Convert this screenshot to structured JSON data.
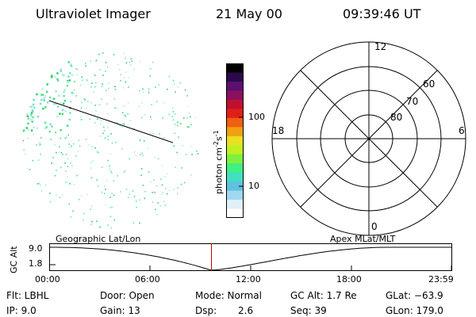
{
  "header": {
    "instrument": "Ultraviolet Imager",
    "date": "21 May 00",
    "time": "09:39:46 UT"
  },
  "colorbar": {
    "label": "photon cm",
    "label_exp1": "-2",
    "label_mid": "s",
    "label_exp2": "-1",
    "ticks": [
      "100",
      "10"
    ],
    "colors": [
      "#000000",
      "#2a0a4a",
      "#5a1070",
      "#8a1060",
      "#c01030",
      "#e02018",
      "#f06010",
      "#f0a010",
      "#e8e020",
      "#c0f020",
      "#80f040",
      "#40f080",
      "#40e0c0",
      "#60c0e0",
      "#a0d8f0",
      "#e0f0f8",
      "#ffffff"
    ]
  },
  "polar": {
    "mlt_labels": [
      "12",
      "18",
      "6",
      "0"
    ],
    "lat_labels": [
      "60",
      "70",
      "80"
    ]
  },
  "alt_plot": {
    "title_left": "Geographic Lat/Lon",
    "title_right": "Apex MLat/MLT",
    "ylabel": "GC Alt",
    "yticks": [
      "9.0",
      "1.8"
    ],
    "xticks": [
      "00:00",
      "06:00",
      "12:00",
      "18:00",
      "23:59"
    ],
    "marker_time_hours": 9.66,
    "marker_color": "#cc0000"
  },
  "info": {
    "flt": "Flt: LBHL",
    "ip": "IP:  9.0",
    "door": "Door: Open",
    "gain": "Gain: 13",
    "mode": "Mode: Normal",
    "dsp_label": "Dsp:",
    "dsp_value": "2.6",
    "gc_alt": "GC Alt: 1.7 Re",
    "seq": "Seq: 39",
    "glat": "GLat: −63.9",
    "glon": "GLon: 179.0"
  }
}
